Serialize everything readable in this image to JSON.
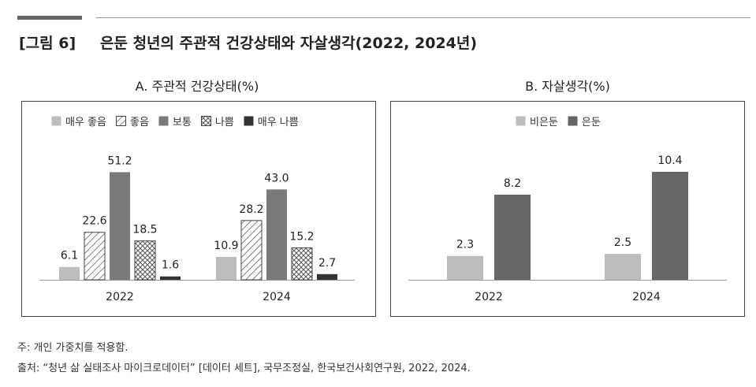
{
  "figure": {
    "label": "[그림 6]",
    "title": "은둔 청년의 주관적 건강상태와 자살생각(2022, 2024년)"
  },
  "chart_data": [
    {
      "type": "bar",
      "title": "A. 주관적 건강상태(%)",
      "categories": [
        "2022",
        "2024"
      ],
      "series": [
        {
          "name": "매우 좋음",
          "values": [
            6.1,
            10.9
          ],
          "color": "#bdbdbd",
          "pattern": "solid"
        },
        {
          "name": "좋음",
          "values": [
            22.6,
            28.2
          ],
          "color": "#555555",
          "pattern": "hatch"
        },
        {
          "name": "보통",
          "values": [
            51.2,
            43.0
          ],
          "color": "#7a7a7a",
          "pattern": "solid"
        },
        {
          "name": "나쁨",
          "values": [
            18.5,
            15.2
          ],
          "color": "#444444",
          "pattern": "crosshatch"
        },
        {
          "name": "매우 나쁨",
          "values": [
            1.6,
            2.7
          ],
          "color": "#333333",
          "pattern": "solid"
        }
      ],
      "value_labels": [
        [
          "6.1",
          "22.6",
          "51.2",
          "18.5",
          "1.6"
        ],
        [
          "10.9",
          "28.2",
          "43.0",
          "15.2",
          "2.7"
        ]
      ],
      "ylim": [
        0,
        60
      ],
      "legend": "top",
      "grid": false
    },
    {
      "type": "bar",
      "title": "B. 자살생각(%)",
      "categories": [
        "2022",
        "2024"
      ],
      "series": [
        {
          "name": "비은둔",
          "values": [
            2.3,
            2.5
          ],
          "color": "#bdbdbd",
          "pattern": "solid"
        },
        {
          "name": "은둔",
          "values": [
            8.2,
            10.4
          ],
          "color": "#666666",
          "pattern": "solid"
        }
      ],
      "value_labels": [
        [
          "2.3",
          "8.2"
        ],
        [
          "2.5",
          "10.4"
        ]
      ],
      "ylim": [
        0,
        12.6
      ],
      "legend": "top",
      "grid": false
    }
  ],
  "notes": {
    "note": "주: 개인 가중치를 적용함.",
    "source": "출처: “청년 삶 실태조사 마이크로데이터” [데이터 세트], 국무조정실, 한국보건사회연구원, 2022, 2024."
  }
}
